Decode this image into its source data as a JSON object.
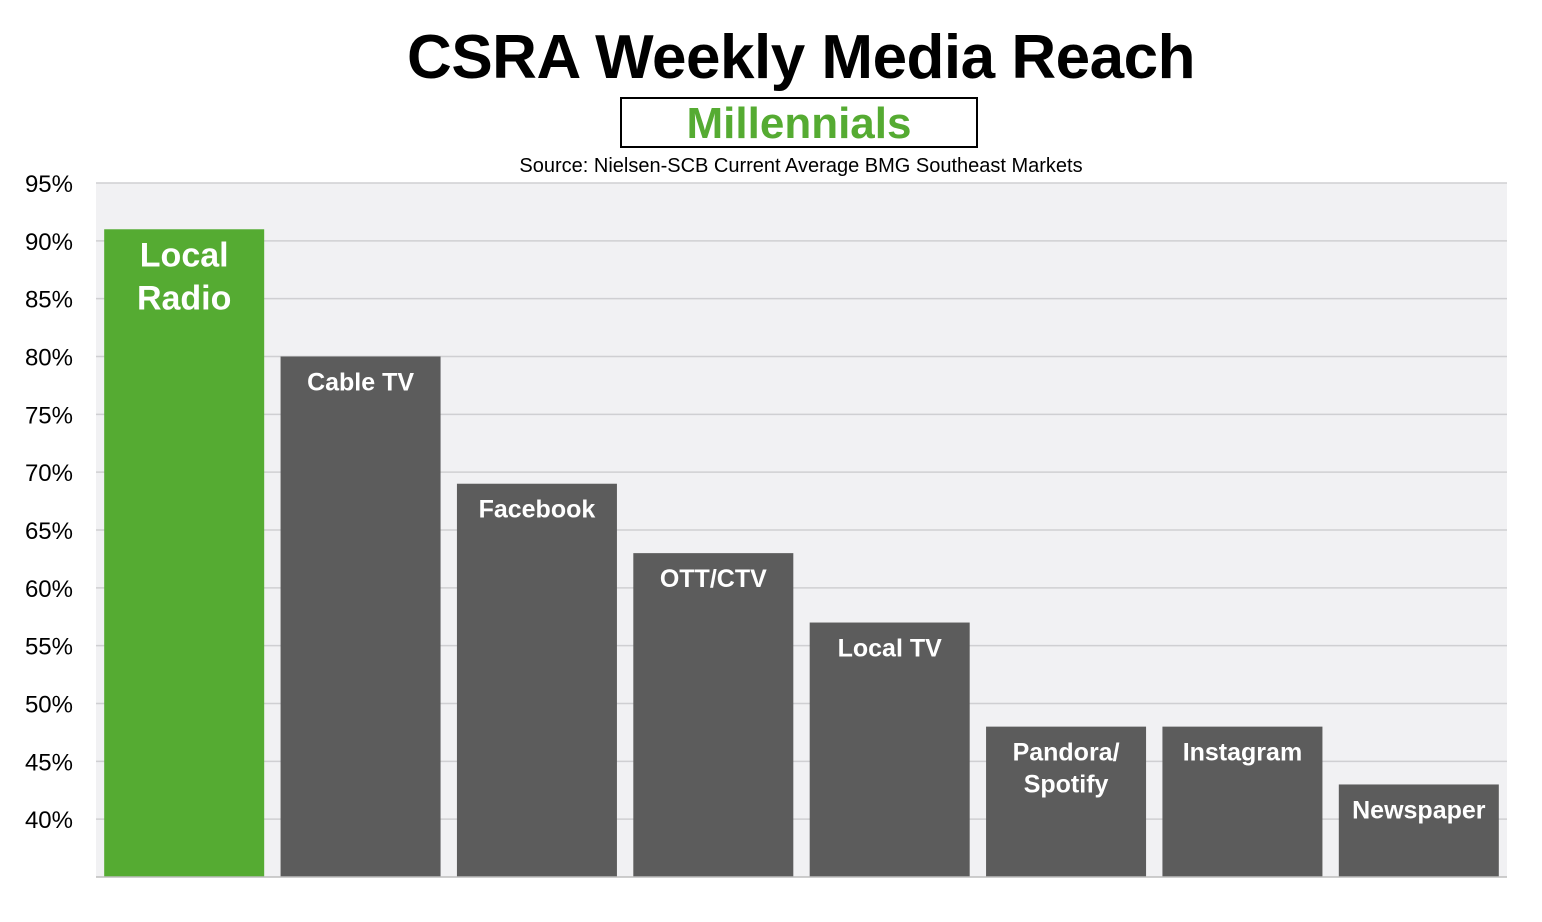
{
  "title": "CSRA Weekly Media Reach",
  "subtitle": "Millennials",
  "source": "Source: Nielsen-SCB  Current Average BMG Southeast Markets",
  "colors": {
    "highlight": "#55ab32",
    "bar": "#5c5c5c",
    "plot_bg": "#f1f1f3",
    "grid": "#cfcfd2",
    "subtitle": "#55ab32"
  },
  "chart_data": {
    "type": "bar",
    "title": "CSRA Weekly Media Reach",
    "subtitle": "Millennials",
    "categories": [
      "Local Radio",
      "Cable TV",
      "Facebook",
      "OTT/CTV",
      "Local TV",
      "Pandora/ Spotify",
      "Instagram",
      "Newspaper"
    ],
    "values": [
      91,
      80,
      69,
      63,
      57,
      48,
      48,
      43
    ],
    "bar_label_lines": [
      [
        "Local",
        "Radio"
      ],
      [
        "Cable TV"
      ],
      [
        "Facebook"
      ],
      [
        "OTT/CTV"
      ],
      [
        "Local TV"
      ],
      [
        "Pandora/",
        "Spotify"
      ],
      [
        "Instagram"
      ],
      [
        "Newspaper"
      ]
    ],
    "highlight_index": 0,
    "ylim": [
      35,
      95
    ],
    "yticks": [
      40,
      45,
      50,
      55,
      60,
      65,
      70,
      75,
      80,
      85,
      90,
      95
    ],
    "ytick_labels": [
      "40%",
      "45%",
      "50%",
      "55%",
      "60%",
      "65%",
      "70%",
      "75%",
      "80%",
      "85%",
      "90%",
      "95%"
    ],
    "xlabel": "",
    "ylabel": "",
    "grid": true,
    "legend": "none"
  }
}
